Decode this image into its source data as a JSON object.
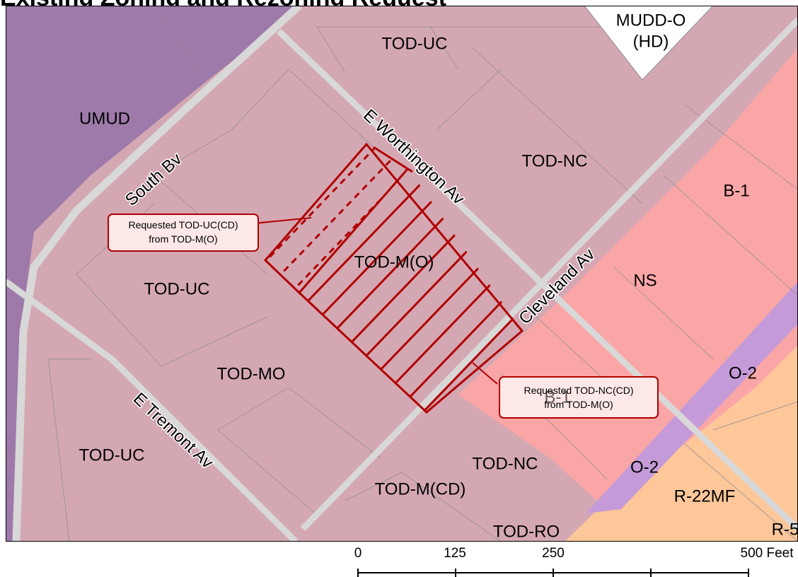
{
  "title": "Existing Zoning and Rezoning Request",
  "zones": {
    "mudd_o_line1": "MUDD-O",
    "mudd_o_line2": "(HD)",
    "tod_uc_north": "TOD-UC",
    "umud": "UMUD",
    "tod_nc_north": "TOD-NC",
    "b1": "B-1",
    "ns": "NS",
    "tod_m_o": "TOD-M(O)",
    "tod_uc_west": "TOD-UC",
    "tod_mo": "TOD-MO",
    "b1_partial": "B-1",
    "o2_upper": "O-2",
    "o2_lower": "O-2",
    "tod_uc_sw": "TOD-UC",
    "tod_nc_south": "TOD-NC",
    "tod_m_cd": "TOD-M(CD)",
    "r22mf": "R-22MF",
    "tod_ro": "TOD-RO",
    "r5": "R-5"
  },
  "streets": {
    "south_bv": "South Bv",
    "e_worthington_av": "E Worthington Av",
    "cleveland_av": "Cleveland Av",
    "e_tremont_av": "E Tremont Av"
  },
  "callouts": {
    "uc_line1": "Requested TOD-UC(CD)",
    "uc_line2": "from TOD-M(O)",
    "nc_line1": "Requested TOD-NC(CD)",
    "nc_line2": "from TOD-M(O)"
  },
  "scale_bar": {
    "tick_0": "0",
    "tick_125": "125",
    "tick_250": "250",
    "tick_500": "500 Feet"
  },
  "colors": {
    "tod_zone": "#d4a8b2",
    "umud": "#9d7aaa",
    "business": "#fba6a6",
    "office": "#c49bd8",
    "residential": "#fdc79a",
    "mudd": "#ffffff",
    "street": "#d8d8d8",
    "rezoning_outline": "#b00000"
  }
}
